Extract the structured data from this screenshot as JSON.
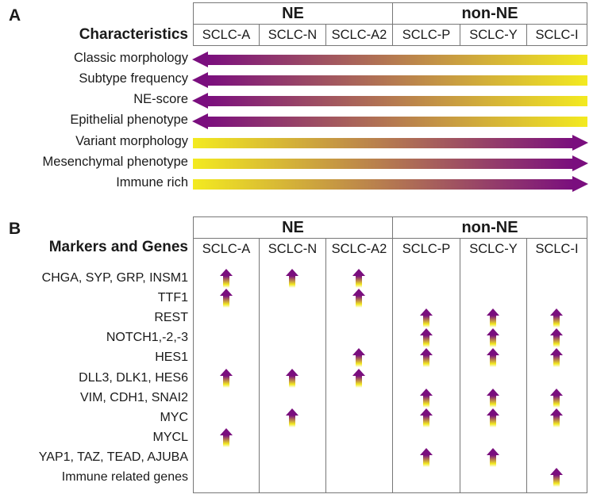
{
  "colors": {
    "purple": "#7a0e7e",
    "yellow": "#f3ea20",
    "border": "#777777",
    "text": "#1a1a1a"
  },
  "panel_a": {
    "label": "A",
    "title": "Characteristics",
    "group_headers": [
      {
        "label": "NE",
        "span": 3
      },
      {
        "label": "non-NE",
        "span": 3
      }
    ],
    "columns": [
      "SCLC-A",
      "SCLC-N",
      "SCLC-A2",
      "SCLC-P",
      "SCLC-Y",
      "SCLC-I"
    ],
    "rows": [
      {
        "label": "Classic morphology",
        "direction": "left"
      },
      {
        "label": "Subtype frequency",
        "direction": "left"
      },
      {
        "label": "NE-score",
        "direction": "left"
      },
      {
        "label": "Epithelial phenotype",
        "direction": "left"
      },
      {
        "label": "Variant morphology",
        "direction": "right"
      },
      {
        "label": "Mesenchymal phenotype",
        "direction": "right"
      },
      {
        "label": "Immune rich",
        "direction": "right"
      }
    ]
  },
  "panel_b": {
    "label": "B",
    "title": "Markers and Genes",
    "group_headers": [
      {
        "label": "NE",
        "span": 3
      },
      {
        "label": "non-NE",
        "span": 3
      }
    ],
    "columns": [
      "SCLC-A",
      "SCLC-N",
      "SCLC-A2",
      "SCLC-P",
      "SCLC-Y",
      "SCLC-I"
    ],
    "rows": [
      {
        "label": "CHGA, SYP, GRP, INSM1",
        "up_in": [
          "SCLC-A",
          "SCLC-N",
          "SCLC-A2"
        ]
      },
      {
        "label": "TTF1",
        "up_in": [
          "SCLC-A",
          "SCLC-A2"
        ]
      },
      {
        "label": "REST",
        "up_in": [
          "SCLC-P",
          "SCLC-Y",
          "SCLC-I"
        ]
      },
      {
        "label": "NOTCH1,-2,-3",
        "up_in": [
          "SCLC-P",
          "SCLC-Y",
          "SCLC-I"
        ]
      },
      {
        "label": "HES1",
        "up_in": [
          "SCLC-A2",
          "SCLC-P",
          "SCLC-Y",
          "SCLC-I"
        ]
      },
      {
        "label": "DLL3, DLK1, HES6",
        "up_in": [
          "SCLC-A",
          "SCLC-N",
          "SCLC-A2"
        ]
      },
      {
        "label": "VIM, CDH1, SNAI2",
        "up_in": [
          "SCLC-P",
          "SCLC-Y",
          "SCLC-I"
        ]
      },
      {
        "label": "MYC",
        "up_in": [
          "SCLC-N",
          "SCLC-P",
          "SCLC-Y",
          "SCLC-I"
        ]
      },
      {
        "label": "MYCL",
        "up_in": [
          "SCLC-A"
        ]
      },
      {
        "label": "YAP1, TAZ, TEAD, AJUBA",
        "up_in": [
          "SCLC-P",
          "SCLC-Y"
        ]
      },
      {
        "label": "Immune related genes",
        "up_in": [
          "SCLC-I"
        ]
      }
    ]
  }
}
